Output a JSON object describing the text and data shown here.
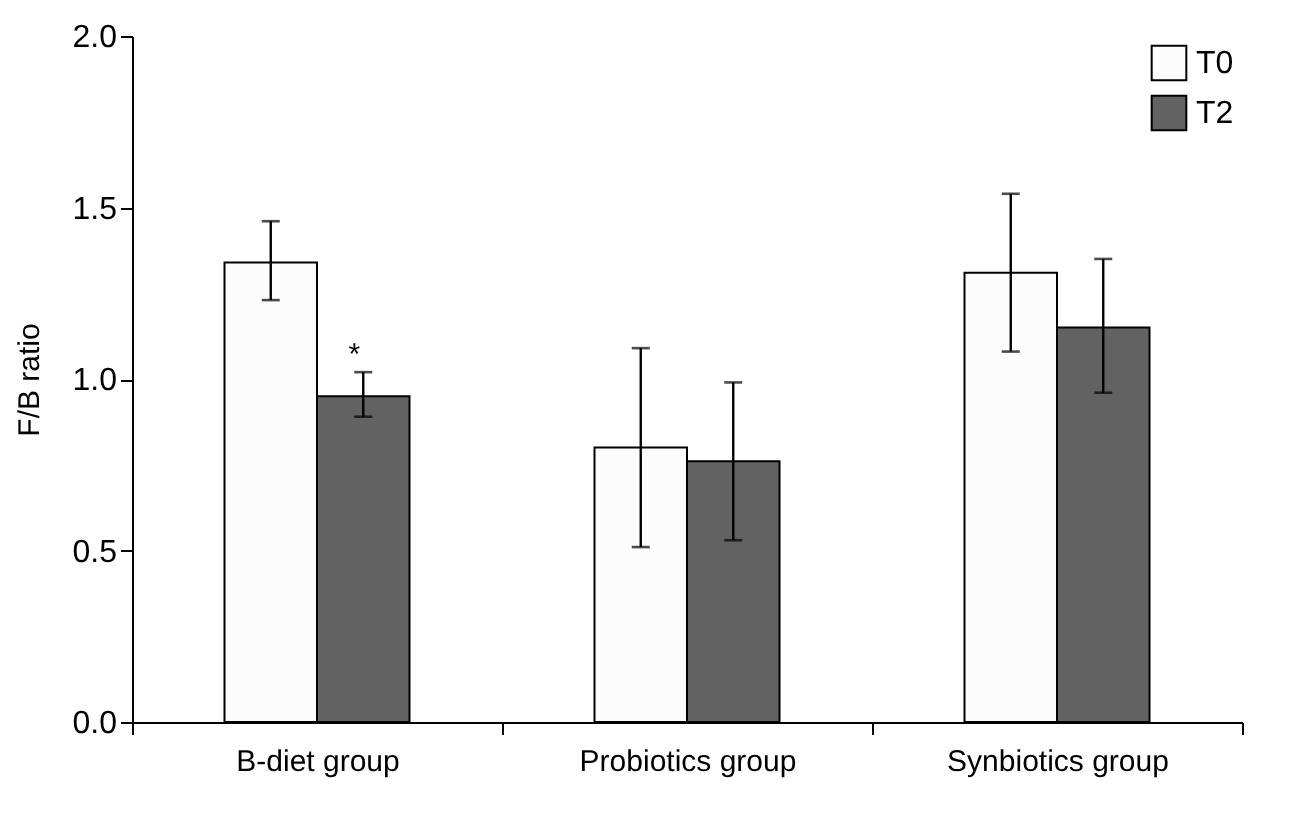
{
  "chart_data": {
    "type": "bar",
    "ylabel": "F/B ratio",
    "categories": [
      "B-diet group",
      "Probiotics group",
      "Synbiotics group"
    ],
    "series": [
      {
        "name": "T0",
        "color": "#fcfcfc",
        "values": [
          1.34,
          0.8,
          1.31
        ],
        "errors": [
          [
            1.23,
            1.46
          ],
          [
            0.51,
            1.09
          ],
          [
            1.08,
            1.54
          ]
        ]
      },
      {
        "name": "T2",
        "color": "#626262",
        "values": [
          0.95,
          0.76,
          1.15
        ],
        "errors": [
          [
            0.89,
            1.02
          ],
          [
            0.53,
            0.99
          ],
          [
            0.96,
            1.35
          ]
        ]
      }
    ],
    "ylim": [
      0,
      2
    ],
    "yticks": [
      {
        "value": 0,
        "label": "0.0"
      },
      {
        "value": 0.5,
        "label": "0.5"
      },
      {
        "value": 1,
        "label": "1.0"
      },
      {
        "value": 1.5,
        "label": "1.5"
      },
      {
        "value": 2,
        "label": "2.0"
      }
    ],
    "annotations": [
      {
        "text": "*",
        "x": "B-diet group",
        "y": 1.02
      }
    ],
    "grid": false,
    "legend": "top right"
  }
}
